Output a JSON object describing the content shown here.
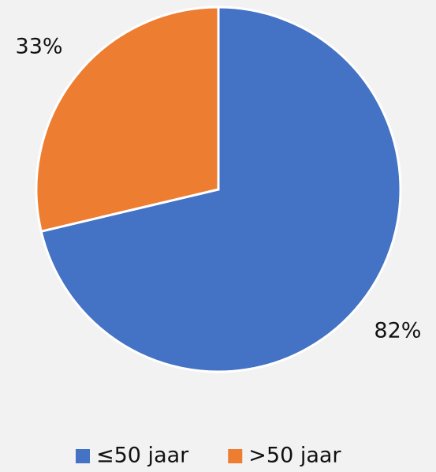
{
  "chart_data": {
    "type": "pie",
    "categories": [
      "≤50 jaar",
      ">50 jaar"
    ],
    "values": [
      82,
      33
    ],
    "value_labels": [
      "82%",
      "33%"
    ],
    "colors": [
      "#4472c4",
      "#ed7d31"
    ],
    "legend": "bottom"
  }
}
